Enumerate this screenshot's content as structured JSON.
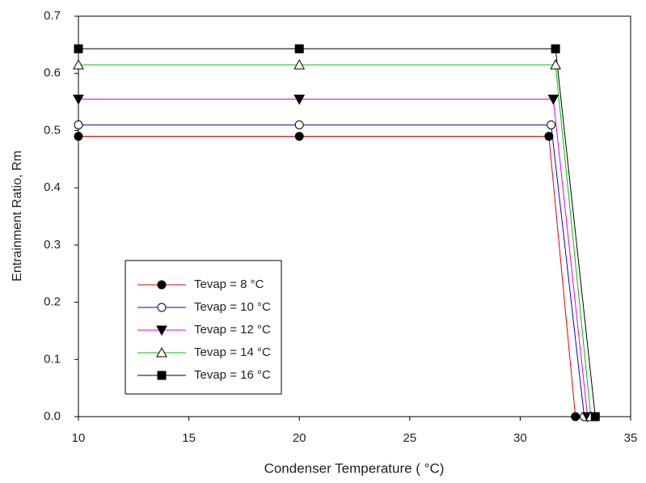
{
  "chart_data": {
    "type": "line",
    "x_label": "Condenser Temperature ( °C)",
    "y_label": "Entrainment Ratio, Rm",
    "xlim": [
      10,
      35
    ],
    "xticks": [
      10,
      15,
      20,
      25,
      30,
      35
    ],
    "ylim": [
      0,
      0.7
    ],
    "yticks": [
      {
        "value": 0,
        "label": "0.0"
      },
      0.1,
      0.2,
      0.3,
      0.4,
      0.5,
      0.6,
      0.7
    ],
    "legend": "lower-left",
    "series": [
      {
        "name": "Tevap = 8 °C",
        "color": "#e00000",
        "marker": "circle",
        "filled": true,
        "x": [
          10,
          20,
          31.3,
          32.5
        ],
        "values": [
          0.49,
          0.49,
          0.49,
          0
        ]
      },
      {
        "name": "Tevap = 10 °C",
        "color": "#0000e0",
        "marker": "circle",
        "filled": false,
        "x": [
          10,
          20,
          31.4,
          32.9
        ],
        "values": [
          0.51,
          0.51,
          0.51,
          0
        ]
      },
      {
        "name": "Tevap = 12 °C",
        "color": "#e000e0",
        "marker": "triangle-down",
        "filled": true,
        "x": [
          10,
          20,
          31.5,
          33.05
        ],
        "values": [
          0.555,
          0.555,
          0.555,
          0
        ]
      },
      {
        "name": "Tevap = 14 °C",
        "color": "#00c000",
        "marker": "triangle-up",
        "filled": false,
        "x": [
          10,
          20,
          31.6,
          33.2
        ],
        "values": [
          0.615,
          0.615,
          0.615,
          0
        ]
      },
      {
        "name": "Tevap = 16 °C",
        "color": "#000000",
        "marker": "square",
        "filled": true,
        "x": [
          10,
          20,
          31.6,
          33.4
        ],
        "values": [
          0.643,
          0.643,
          0.643,
          0
        ]
      }
    ]
  }
}
